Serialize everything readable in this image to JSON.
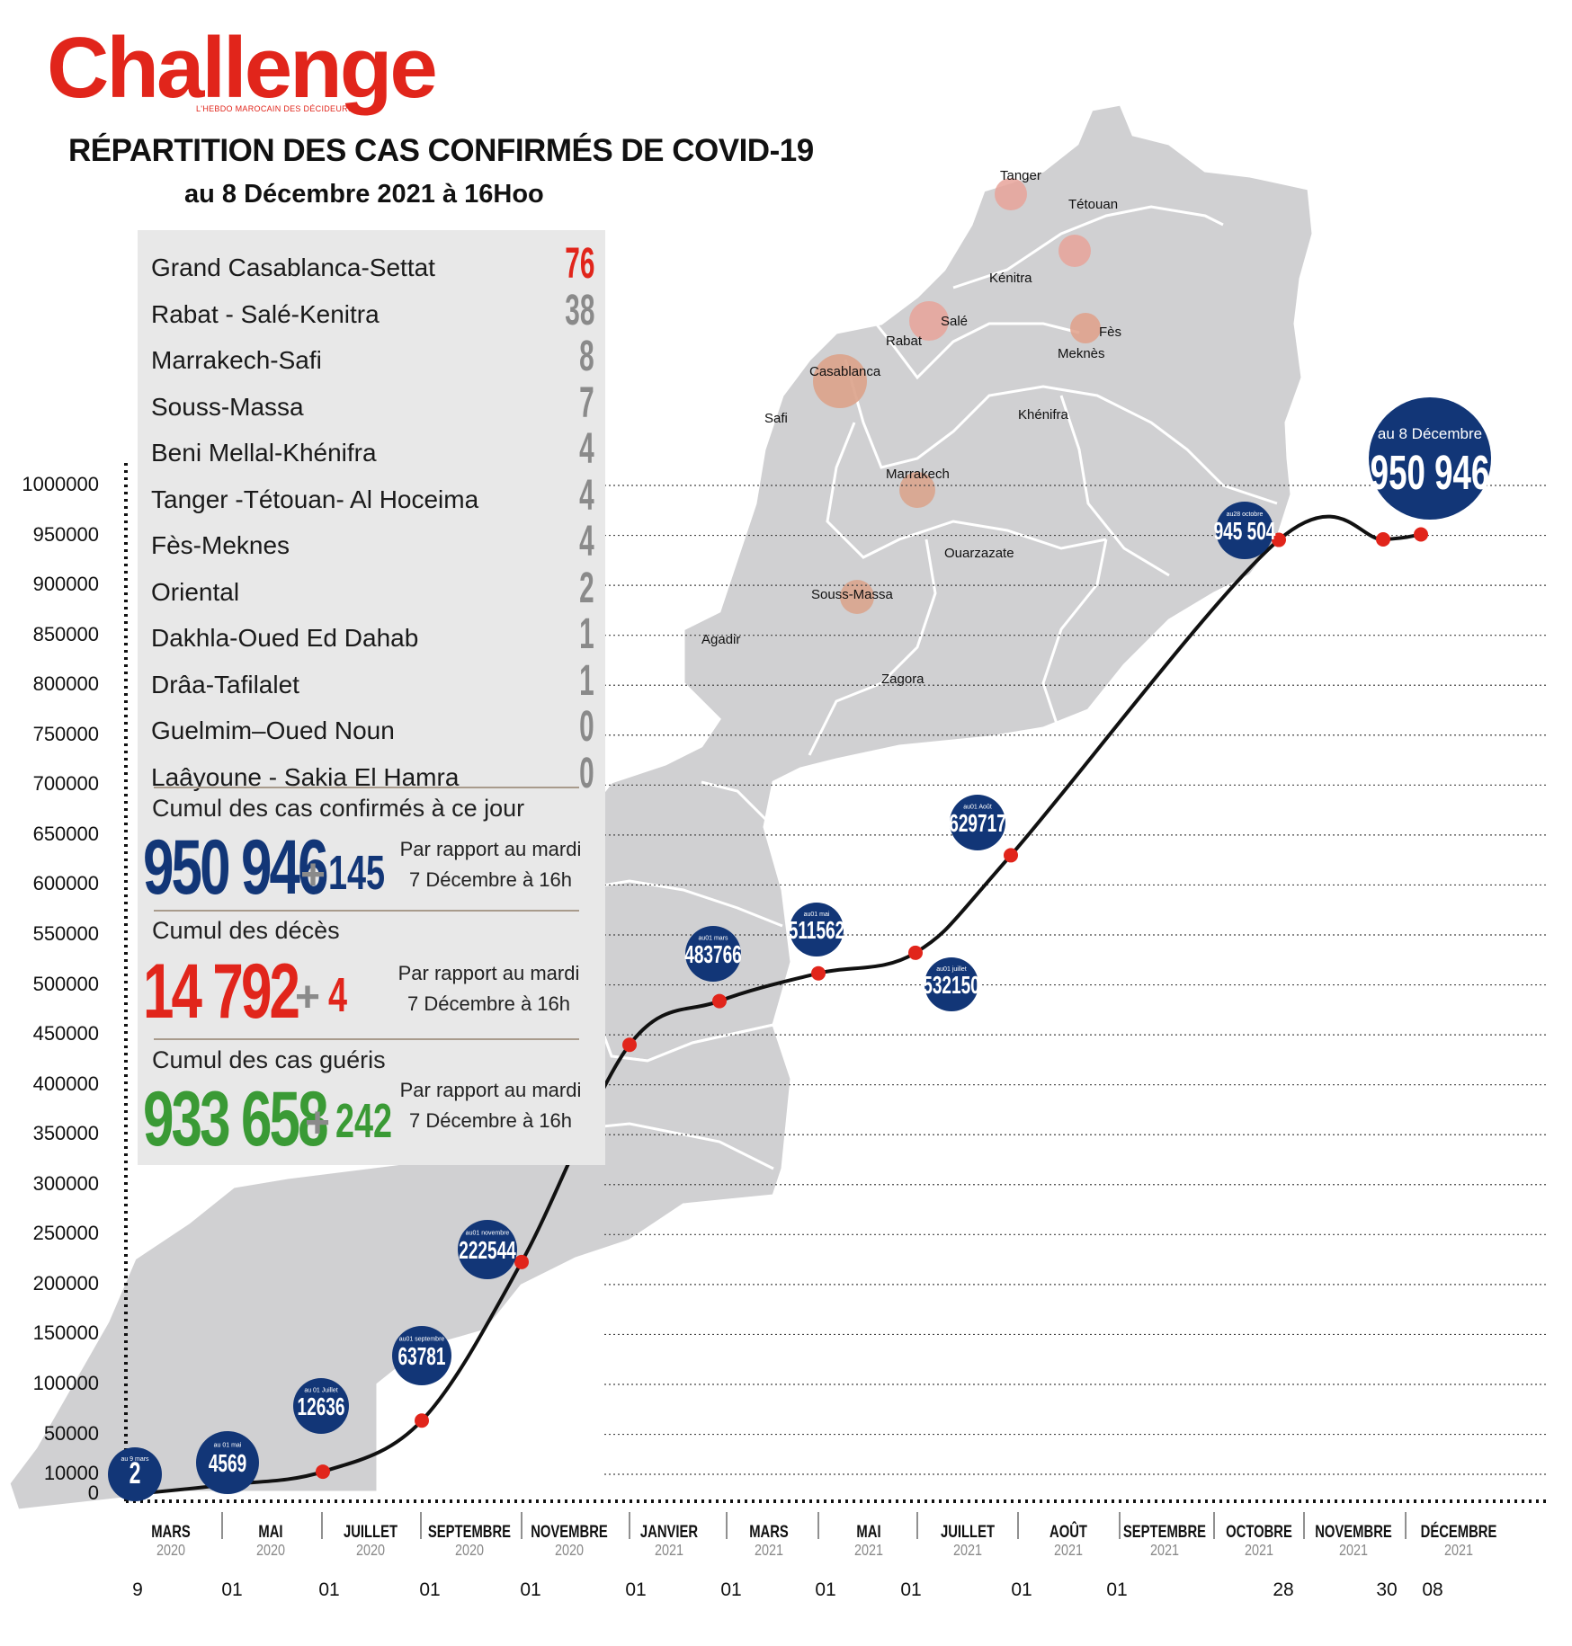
{
  "header": {
    "brand": "Challenge",
    "tagline": "L'HEBDO MAROCAIN DES DÉCIDEURS",
    "title": "RÉPARTITION DES CAS CONFIRMÉS DE COVID-19",
    "subtitle": "au 8 Décembre 2021 à 16Hoo"
  },
  "colors": {
    "brand_red": "#e1251b",
    "navy": "#123677",
    "green": "#3a9a35",
    "point_red": "#e1251b",
    "map_gray": "#d0d0d2"
  },
  "regions": [
    {
      "name": "Grand Casablanca-Settat",
      "value": "76"
    },
    {
      "name": "Rabat - Salé-Kenitra",
      "value": "38"
    },
    {
      "name": "Marrakech-Safi",
      "value": "8"
    },
    {
      "name": "Souss-Massa",
      "value": "7"
    },
    {
      "name": "Beni Mellal-Khénifra",
      "value": "4"
    },
    {
      "name": "Tanger -Tétouan- Al Hoceima",
      "value": "4"
    },
    {
      "name": "Fès-Meknes",
      "value": "4"
    },
    {
      "name": "Oriental",
      "value": "2"
    },
    {
      "name": "Dakhla-Oued Ed Dahab",
      "value": "1"
    },
    {
      "name": "Drâa-Tafilalet",
      "value": "1"
    },
    {
      "name": "Guelmim–Oued Noun",
      "value": "0"
    },
    {
      "name": "Laâyoune - Sakia El Hamra",
      "value": "0"
    }
  ],
  "cumuls": {
    "confirmes": {
      "label": "Cumul des cas confirmés à ce jour",
      "value": "950 946",
      "plus": "+",
      "delta": "145",
      "note1": "Par rapport au mardi",
      "note2": "7 Décembre à 16h"
    },
    "deces": {
      "label": "Cumul des décès",
      "value": "14 792",
      "plus": "+",
      "delta": "4",
      "note1": "Par rapport au mardi",
      "note2": "7 Décembre à 16h"
    },
    "gueris": {
      "label": "Cumul des cas guéris",
      "value": "933 658",
      "plus": "+",
      "delta": "242",
      "note1": "Par rapport au mardi",
      "note2": "7 Décembre à 16h"
    }
  },
  "map": {
    "cities": [
      "Tanger",
      "Tétouan",
      "Kénitra",
      "Salé",
      "Rabat",
      "Fès",
      "Meknès",
      "Casablanca",
      "Safi",
      "Khénifra",
      "Marrakech",
      "Ouarzazate",
      "Souss-Massa",
      "Agadir",
      "Zagora"
    ]
  },
  "chart_data": {
    "type": "line",
    "title": "RÉPARTITION DES CAS CONFIRMÉS DE COVID-19",
    "y_ticks": [
      "1000000",
      "950000",
      "900000",
      "850000",
      "800000",
      "750000",
      "700000",
      "650000",
      "600000",
      "550000",
      "500000",
      "450000",
      "400000",
      "350000",
      "300000",
      "250000",
      "200000",
      "150000",
      "100000",
      "50000",
      "10000",
      "0"
    ],
    "ylim": [
      0,
      1000000
    ],
    "grid": true,
    "months": [
      {
        "name": "MARS",
        "year": "2020"
      },
      {
        "name": "MAI",
        "year": "2020"
      },
      {
        "name": "JUILLET",
        "year": "2020"
      },
      {
        "name": "SEPTEMBRE",
        "year": "2020"
      },
      {
        "name": "NOVEMBRE",
        "year": "2020"
      },
      {
        "name": "JANVIER",
        "year": "2021"
      },
      {
        "name": "MARS",
        "year": "2021"
      },
      {
        "name": "MAI",
        "year": "2021"
      },
      {
        "name": "JUILLET",
        "year": "2021"
      },
      {
        "name": "AOÛT",
        "year": "2021"
      },
      {
        "name": "SEPTEMBRE",
        "year": "2021"
      },
      {
        "name": "OCTOBRE",
        "year": "2021"
      },
      {
        "name": "NOVEMBRE",
        "year": "2021"
      },
      {
        "name": "DÉCEMBRE",
        "year": "2021"
      }
    ],
    "day_ticks": [
      "9",
      "01",
      "01",
      "01",
      "01",
      "01",
      "01",
      "01",
      "01",
      "01",
      "01",
      "28",
      "30",
      "08"
    ],
    "points": [
      {
        "date": "2020-03-09",
        "value": 2
      },
      {
        "date": "2020-05-01",
        "value": 4569
      },
      {
        "date": "2020-07-01",
        "value": 12636
      },
      {
        "date": "2020-09-01",
        "value": 63781
      },
      {
        "date": "2020-11-01",
        "value": 222544
      },
      {
        "date": "2021-01-01",
        "value": 440000
      },
      {
        "date": "2021-03-01",
        "value": 483766
      },
      {
        "date": "2021-05-01",
        "value": 511562
      },
      {
        "date": "2021-07-01",
        "value": 532150
      },
      {
        "date": "2021-08-01",
        "value": 629717
      },
      {
        "date": "2021-10-28",
        "value": 945504
      },
      {
        "date": "2021-11-30",
        "value": 946000
      },
      {
        "date": "2021-12-08",
        "value": 950946
      }
    ],
    "bubbles": [
      {
        "caption": "au 9 mars",
        "value": "2"
      },
      {
        "caption": "au 01 mai",
        "value": "4569"
      },
      {
        "caption": "au 01 Juillet",
        "value": "12636"
      },
      {
        "caption": "au01 septembre",
        "value": "63781"
      },
      {
        "caption": "au01 novembre",
        "value": "222544"
      },
      {
        "caption": "au01 mars",
        "value": "483766"
      },
      {
        "caption": "au01 mai",
        "value": "511562"
      },
      {
        "caption": "au01 juillet",
        "value": "532150"
      },
      {
        "caption": "au01 Août",
        "value": "629717"
      },
      {
        "caption": "au28 octobre",
        "value": "945 504"
      },
      {
        "caption": "au 8 Décembre",
        "value": "950 946"
      }
    ]
  }
}
